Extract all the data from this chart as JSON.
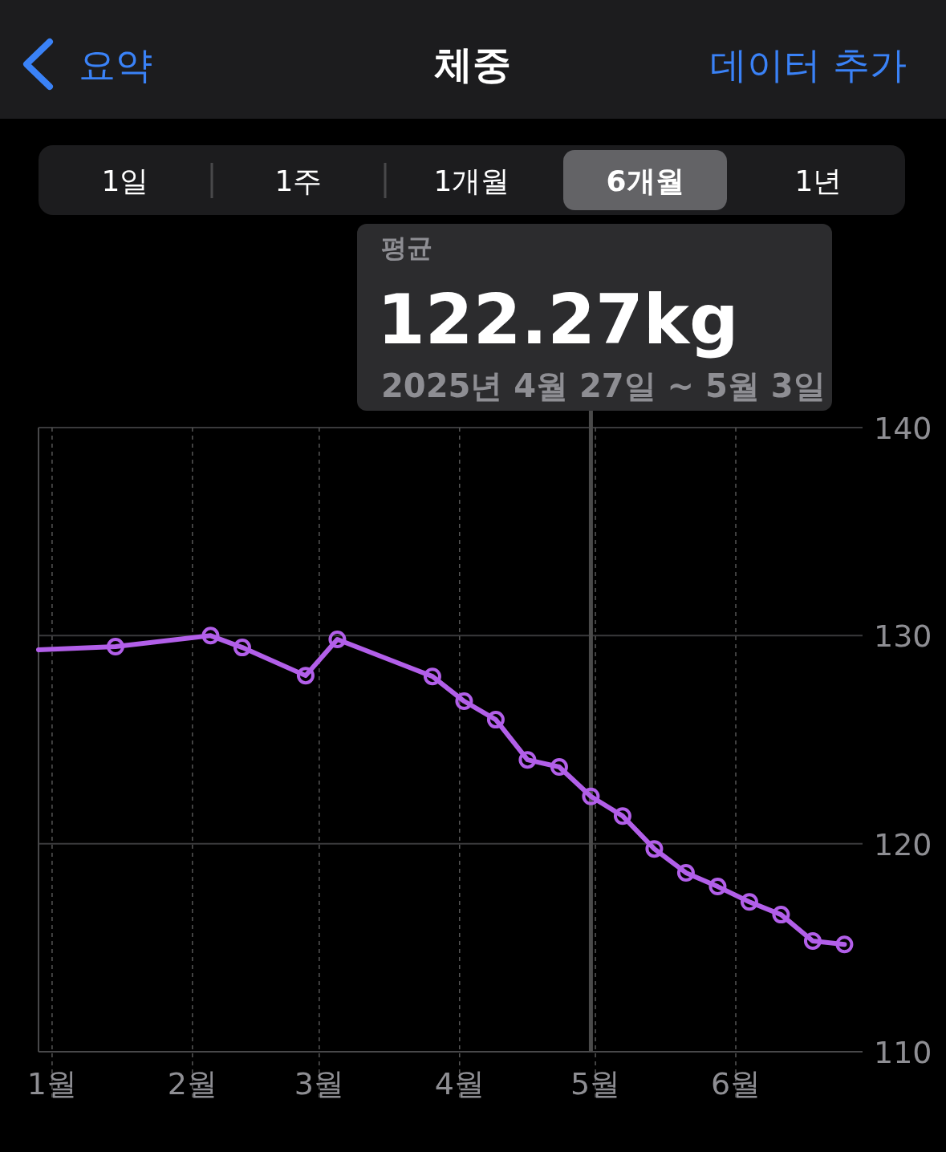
{
  "chart_data": {
    "type": "line",
    "title": "체중",
    "annotations": [
      "요약",
      "데이터 추가",
      "1일",
      "1주",
      "1개월",
      "6개월",
      "1년",
      "평균",
      "122.27kg",
      "2025년 4월 27일 ~ 5월 3일"
    ],
    "x": [
      "2024-12-29",
      "2025-01-15",
      "2025-02-05",
      "2025-02-12",
      "2025-02-26",
      "2025-03-05",
      "2025-03-26",
      "2025-04-02",
      "2025-04-09",
      "2025-04-16",
      "2025-04-23",
      "2025-04-30",
      "2025-05-07",
      "2025-05-14",
      "2025-05-21",
      "2025-05-28",
      "2025-06-04",
      "2025-06-11",
      "2025-06-18",
      "2025-06-25"
    ],
    "series": [
      {
        "color": "#b25fe9",
        "values": [
          129.32,
          129.47,
          130.0,
          129.43,
          128.08,
          129.82,
          128.04,
          126.85,
          125.96,
          124.03,
          123.69,
          122.27,
          121.33,
          119.75,
          118.6,
          117.94,
          117.2,
          116.59,
          115.32,
          115.16
        ]
      }
    ],
    "xlim": [
      "2024-12-29",
      "2025-06-29"
    ],
    "xticks": [
      {
        "value": "2025-01-01",
        "label": "1월"
      },
      {
        "value": "2025-02-01",
        "label": "2월"
      },
      {
        "value": "2025-03-01",
        "label": "3월"
      },
      {
        "value": "2025-04-01",
        "label": "4월"
      },
      {
        "value": "2025-05-01",
        "label": "5월"
      },
      {
        "value": "2025-06-01",
        "label": "6월"
      }
    ],
    "ylim": [
      110,
      140
    ],
    "yticks": [
      110,
      120,
      130,
      140
    ],
    "ref_lines": [
      {
        "axis": "x",
        "value": "2025-04-30",
        "color": "#4a4a4a"
      }
    ],
    "grid": true,
    "marker": "circle",
    "line_style": "solid"
  }
}
